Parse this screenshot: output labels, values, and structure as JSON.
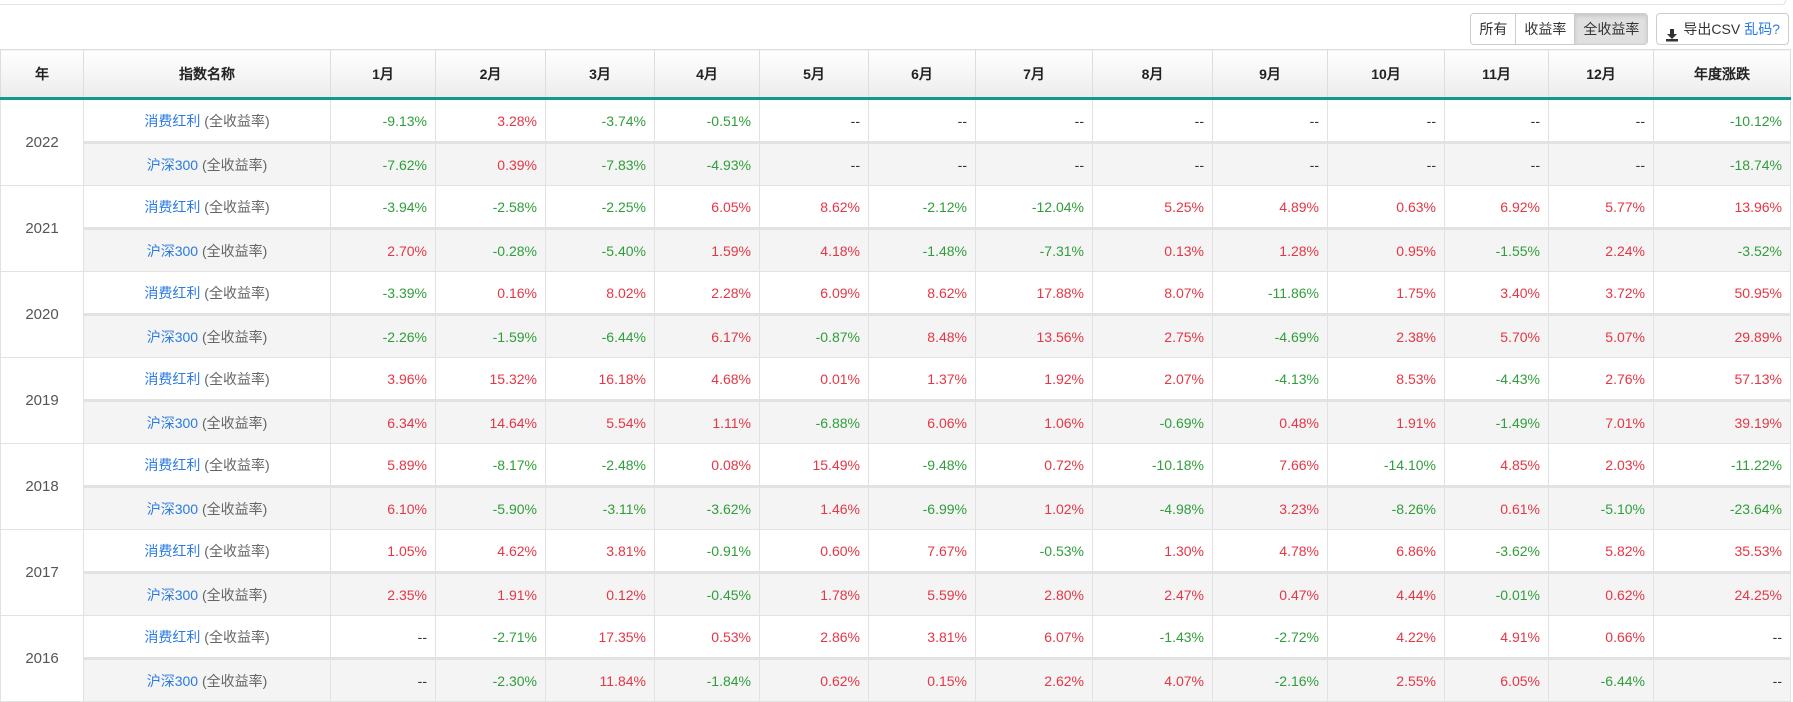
{
  "toolbar": {
    "filters": [
      "所有",
      "收益率",
      "全收益率"
    ],
    "active_filter": "全收益率",
    "export_label": "导出CSV",
    "garbled_link": "乱码?"
  },
  "table": {
    "headers": [
      "年",
      "指数名称",
      "1月",
      "2月",
      "3月",
      "4月",
      "5月",
      "6月",
      "7月",
      "8月",
      "9月",
      "10月",
      "11月",
      "12月",
      "年度涨跌"
    ],
    "suffix": "(全收益率)",
    "years": [
      {
        "year": "2022",
        "rows": [
          {
            "index": "消费红利",
            "values": [
              "-9.13%",
              "3.28%",
              "-3.74%",
              "-0.51%",
              "--",
              "--",
              "--",
              "--",
              "--",
              "--",
              "--",
              "--",
              "-10.12%"
            ]
          },
          {
            "index": "沪深300",
            "values": [
              "-7.62%",
              "0.39%",
              "-7.83%",
              "-4.93%",
              "--",
              "--",
              "--",
              "--",
              "--",
              "--",
              "--",
              "--",
              "-18.74%"
            ]
          }
        ]
      },
      {
        "year": "2021",
        "rows": [
          {
            "index": "消费红利",
            "values": [
              "-3.94%",
              "-2.58%",
              "-2.25%",
              "6.05%",
              "8.62%",
              "-2.12%",
              "-12.04%",
              "5.25%",
              "4.89%",
              "0.63%",
              "6.92%",
              "5.77%",
              "13.96%"
            ]
          },
          {
            "index": "沪深300",
            "values": [
              "2.70%",
              "-0.28%",
              "-5.40%",
              "1.59%",
              "4.18%",
              "-1.48%",
              "-7.31%",
              "0.13%",
              "1.28%",
              "0.95%",
              "-1.55%",
              "2.24%",
              "-3.52%"
            ]
          }
        ]
      },
      {
        "year": "2020",
        "rows": [
          {
            "index": "消费红利",
            "values": [
              "-3.39%",
              "0.16%",
              "8.02%",
              "2.28%",
              "6.09%",
              "8.62%",
              "17.88%",
              "8.07%",
              "-11.86%",
              "1.75%",
              "3.40%",
              "3.72%",
              "50.95%"
            ]
          },
          {
            "index": "沪深300",
            "values": [
              "-2.26%",
              "-1.59%",
              "-6.44%",
              "6.17%",
              "-0.87%",
              "8.48%",
              "13.56%",
              "2.75%",
              "-4.69%",
              "2.38%",
              "5.70%",
              "5.07%",
              "29.89%"
            ]
          }
        ]
      },
      {
        "year": "2019",
        "rows": [
          {
            "index": "消费红利",
            "values": [
              "3.96%",
              "15.32%",
              "16.18%",
              "4.68%",
              "0.01%",
              "1.37%",
              "1.92%",
              "2.07%",
              "-4.13%",
              "8.53%",
              "-4.43%",
              "2.76%",
              "57.13%"
            ]
          },
          {
            "index": "沪深300",
            "values": [
              "6.34%",
              "14.64%",
              "5.54%",
              "1.11%",
              "-6.88%",
              "6.06%",
              "1.06%",
              "-0.69%",
              "0.48%",
              "1.91%",
              "-1.49%",
              "7.01%",
              "39.19%"
            ]
          }
        ]
      },
      {
        "year": "2018",
        "rows": [
          {
            "index": "消费红利",
            "values": [
              "5.89%",
              "-8.17%",
              "-2.48%",
              "0.08%",
              "15.49%",
              "-9.48%",
              "0.72%",
              "-10.18%",
              "7.66%",
              "-14.10%",
              "4.85%",
              "2.03%",
              "-11.22%"
            ]
          },
          {
            "index": "沪深300",
            "values": [
              "6.10%",
              "-5.90%",
              "-3.11%",
              "-3.62%",
              "1.46%",
              "-6.99%",
              "1.02%",
              "-4.98%",
              "3.23%",
              "-8.26%",
              "0.61%",
              "-5.10%",
              "-23.64%"
            ]
          }
        ]
      },
      {
        "year": "2017",
        "rows": [
          {
            "index": "消费红利",
            "values": [
              "1.05%",
              "4.62%",
              "3.81%",
              "-0.91%",
              "0.60%",
              "7.67%",
              "-0.53%",
              "1.30%",
              "4.78%",
              "6.86%",
              "-3.62%",
              "5.82%",
              "35.53%"
            ]
          },
          {
            "index": "沪深300",
            "values": [
              "2.35%",
              "1.91%",
              "0.12%",
              "-0.45%",
              "1.78%",
              "5.59%",
              "2.80%",
              "2.47%",
              "0.47%",
              "4.44%",
              "-0.01%",
              "0.62%",
              "24.25%"
            ]
          }
        ]
      },
      {
        "year": "2016",
        "rows": [
          {
            "index": "消费红利",
            "values": [
              "--",
              "-2.71%",
              "17.35%",
              "0.53%",
              "2.86%",
              "3.81%",
              "6.07%",
              "-1.43%",
              "-2.72%",
              "4.22%",
              "4.91%",
              "0.66%",
              "--"
            ]
          },
          {
            "index": "沪深300",
            "values": [
              "--",
              "-2.30%",
              "11.84%",
              "-1.84%",
              "0.62%",
              "0.15%",
              "2.62%",
              "4.07%",
              "-2.16%",
              "2.55%",
              "6.05%",
              "-6.44%",
              "--"
            ]
          }
        ]
      }
    ]
  },
  "colors": {
    "up": "#e53645",
    "down": "#2f9e3a",
    "accent": "#0e9a8f",
    "link": "#2a7ae2"
  }
}
